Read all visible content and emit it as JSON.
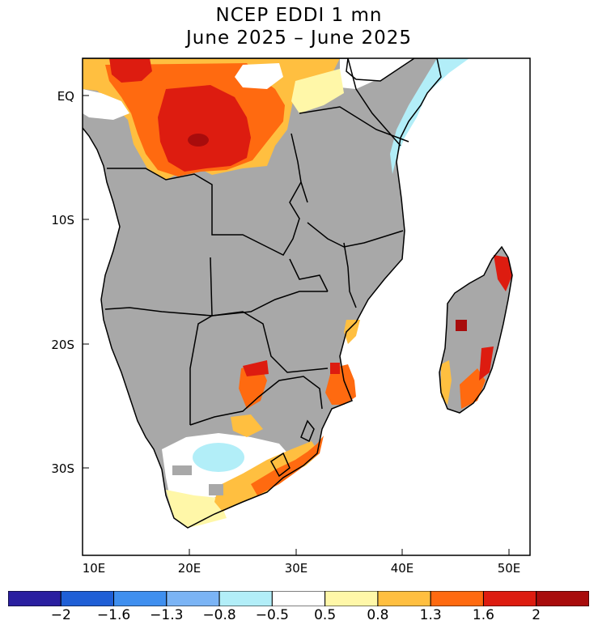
{
  "title": {
    "line1": "NCEP EDDI 1 mn",
    "line2": "June 2025 – June 2025"
  },
  "axes": {
    "lat_labels": [
      "EQ",
      "10S",
      "20S",
      "30S"
    ],
    "lon_labels": [
      "10E",
      "20E",
      "30E",
      "40E",
      "50E"
    ]
  },
  "legend": {
    "colors": [
      "#2a1fa0",
      "#1f5fd6",
      "#3f8fef",
      "#7bb4f5",
      "#b2eef8",
      "#ffffff",
      "#fff7a8",
      "#ffbf40",
      "#ff6a10",
      "#dd1c10",
      "#a80c0c"
    ],
    "labels": [
      "−2",
      "−1.6",
      "−1.3",
      "−0.8",
      "−0.5",
      "0.5",
      "0.8",
      "1.3",
      "1.6",
      "2"
    ]
  },
  "colors": {
    "land_no_data": "#a8a8a8",
    "wet_light": "#b2eef8",
    "neutral": "#ffffff",
    "dry_slight": "#fff7a8",
    "dry_moderate": "#ffbf40",
    "dry_severe": "#ff6a10",
    "dry_extreme": "#dd1c10",
    "dry_exceptional": "#a80c0c",
    "border": "#000000"
  }
}
